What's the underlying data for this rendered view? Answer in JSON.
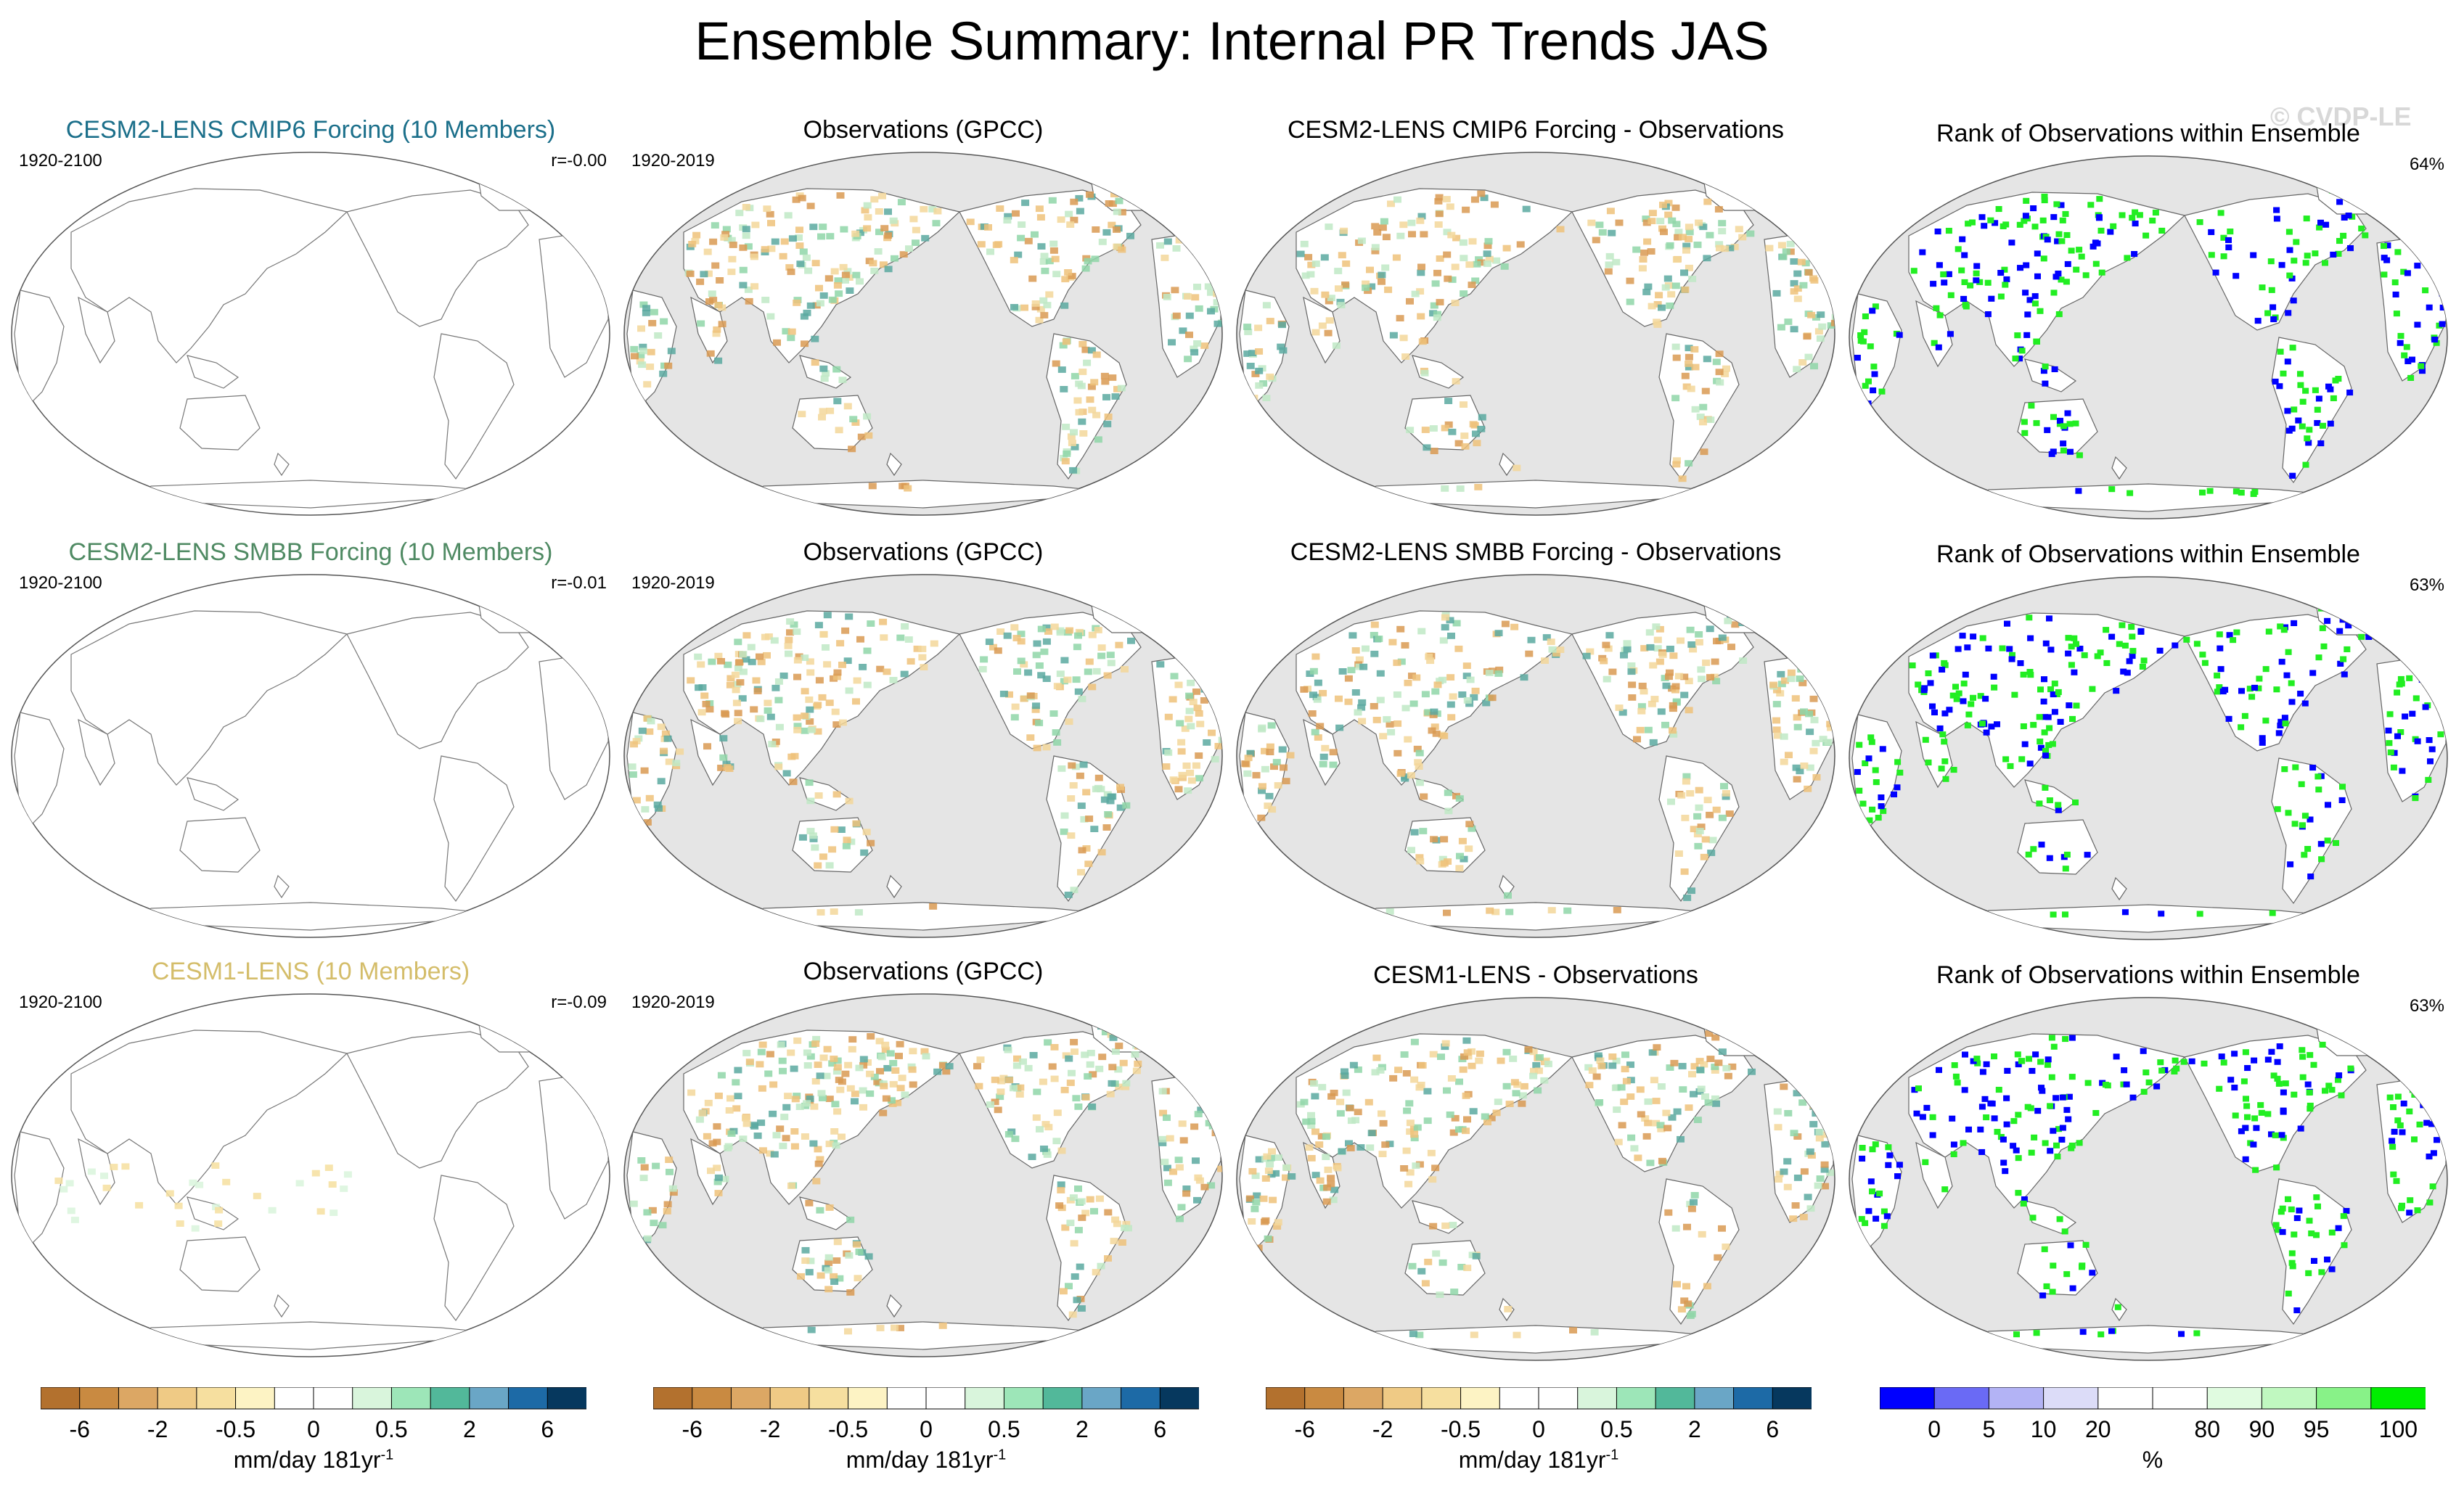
{
  "title": "Ensemble Summary: Internal PR Trends JAS",
  "watermark": "© CVDP-LE",
  "colors": {
    "ocean": "#e5e5e5",
    "land_white": "#ffffff",
    "row_titles": [
      "#1b6f8a",
      "#4f8a63",
      "#d4bd6a"
    ]
  },
  "rows": [
    {
      "model": {
        "title": "CESM2-LENS CMIP6 Forcing (10 Members)",
        "years": "1920-2100",
        "corr": "r=-0.00"
      },
      "obs": {
        "title": "Observations (GPCC)",
        "years": "1920-2019"
      },
      "diff": {
        "title": "CESM2-LENS CMIP6 Forcing - Observations"
      },
      "rank": {
        "title": "Rank of Observations within Ensemble",
        "percent": "64%"
      }
    },
    {
      "model": {
        "title": "CESM2-LENS SMBB Forcing (10 Members)",
        "years": "1920-2100",
        "corr": "r=-0.01"
      },
      "obs": {
        "title": "Observations (GPCC)",
        "years": "1920-2019"
      },
      "diff": {
        "title": "CESM2-LENS SMBB Forcing - Observations"
      },
      "rank": {
        "title": "Rank of Observations within Ensemble",
        "percent": "63%"
      }
    },
    {
      "model": {
        "title": "CESM1-LENS (10 Members)",
        "years": "1920-2100",
        "corr": "r=-0.09"
      },
      "obs": {
        "title": "Observations (GPCC)",
        "years": "1920-2019"
      },
      "diff": {
        "title": "CESM1-LENS - Observations"
      },
      "rank": {
        "title": "Rank of Observations within Ensemble",
        "percent": "63%"
      }
    }
  ],
  "colorbars": {
    "trend": {
      "colors": [
        "#b3712e",
        "#c98a41",
        "#dca764",
        "#efca85",
        "#f6df9f",
        "#fdf3c4",
        "#ffffff",
        "#ffffff",
        "#d9f5dc",
        "#9de6b8",
        "#52b89a",
        "#6aa6c6",
        "#1d6aa6",
        "#06385e"
      ],
      "tick_labels": [
        "-6",
        "-2",
        "-0.5",
        "0",
        "0.5",
        "2",
        "6"
      ],
      "unit": "mm/day 181yr",
      "unit_sup": "-1"
    },
    "rank": {
      "colors": [
        "#0000ff",
        "#6a6af5",
        "#b3b3f5",
        "#dcdcf8",
        "#ffffff",
        "#ffffff",
        "#e0fbe0",
        "#c0f8c0",
        "#88f288",
        "#00ee00"
      ],
      "tick_labels": [
        "0",
        "5",
        "10",
        "20",
        "80",
        "90",
        "95",
        "100"
      ],
      "unit": "%"
    }
  }
}
